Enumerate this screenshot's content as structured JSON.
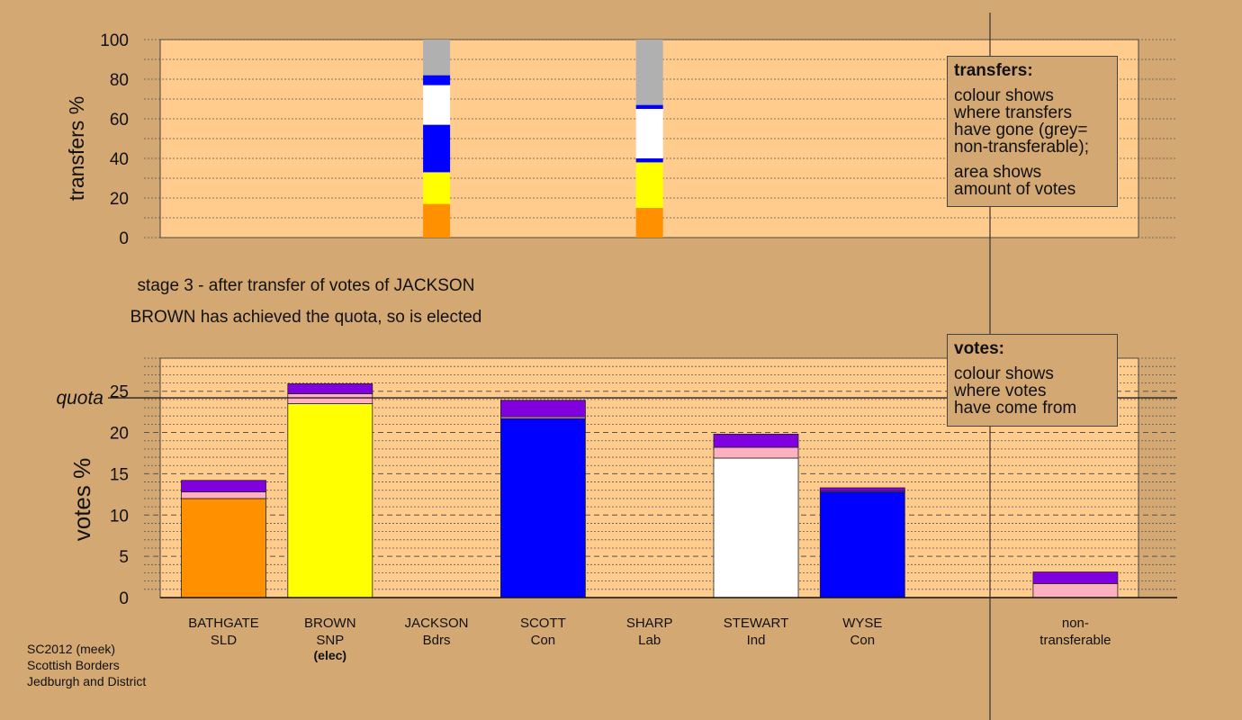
{
  "chart_data": {
    "type": "bar",
    "stage_caption": "stage 3 - after transfer of votes of JACKSON",
    "result_caption": "BROWN has achieved the quota, so is elected",
    "transfers_panel": {
      "ylabel": "transfers %",
      "ylim": [
        0,
        100
      ],
      "yticks": [
        "0",
        "20",
        "40",
        "60",
        "80",
        "100"
      ],
      "bars": [
        {
          "candidate": "JACKSON",
          "segments": [
            {
              "color": "#ff9000",
              "value": 17
            },
            {
              "color": "#ffff00",
              "value": 16
            },
            {
              "color": "#0000ff",
              "value": 24
            },
            {
              "color": "#ffffff",
              "value": 20
            },
            {
              "color": "#0000ff",
              "value": 5
            },
            {
              "color": "#b0b0b0",
              "value": 18
            }
          ]
        },
        {
          "candidate": "SHARP",
          "segments": [
            {
              "color": "#ff9000",
              "value": 15
            },
            {
              "color": "#ffff00",
              "value": 23
            },
            {
              "color": "#0000ff",
              "value": 2
            },
            {
              "color": "#ffffff",
              "value": 25
            },
            {
              "color": "#0000ff",
              "value": 2
            },
            {
              "color": "#b0b0b0",
              "value": 33
            }
          ]
        }
      ]
    },
    "votes_panel": {
      "ylabel": "votes %",
      "ylim": [
        0,
        29
      ],
      "yticks": [
        "0",
        "5",
        "10",
        "15",
        "20",
        "25"
      ],
      "quota": 24.2,
      "quota_label": "quota",
      "bars": [
        {
          "candidate": "BATHGATE",
          "party": "SLD",
          "segments": [
            {
              "color": "#ff9000",
              "value": 12.0
            },
            {
              "color": "#ffb0c0",
              "value": 0.8
            },
            {
              "color": "#8000e0",
              "value": 1.4
            }
          ]
        },
        {
          "candidate": "BROWN",
          "party": "SNP",
          "note": "(elec)",
          "segments": [
            {
              "color": "#ffff00",
              "value": 23.5
            },
            {
              "color": "#ffb0c0",
              "value": 1.2
            },
            {
              "color": "#8000e0",
              "value": 1.2
            }
          ]
        },
        {
          "candidate": "JACKSON",
          "party": "Bdrs",
          "segments": []
        },
        {
          "candidate": "SCOTT",
          "party": "Con",
          "segments": [
            {
              "color": "#0000ff",
              "value": 21.7
            },
            {
              "color": "#ffb0c0",
              "value": 0.2
            },
            {
              "color": "#8000e0",
              "value": 2.0
            }
          ]
        },
        {
          "candidate": "SHARP",
          "party": "Lab",
          "segments": []
        },
        {
          "candidate": "STEWART",
          "party": "Ind",
          "segments": [
            {
              "color": "#ffffff",
              "value": 16.9
            },
            {
              "color": "#ffb0c0",
              "value": 1.3
            },
            {
              "color": "#8000e0",
              "value": 1.6
            }
          ]
        },
        {
          "candidate": "WYSE",
          "party": "Con",
          "segments": [
            {
              "color": "#0000ff",
              "value": 12.8
            },
            {
              "color": "#ffb0c0",
              "value": 0.1
            },
            {
              "color": "#8000e0",
              "value": 0.4
            }
          ]
        },
        {
          "gap": true
        },
        {
          "candidate": "non-",
          "party": "transferable",
          "segments": [
            {
              "color": "#ffb0c0",
              "value": 1.7
            },
            {
              "color": "#8000e0",
              "value": 1.4
            }
          ]
        }
      ]
    },
    "legend_transfers": {
      "title": "transfers:",
      "lines": [
        "colour shows\nwhere transfers\nhave gone (grey=\nnon-transferable);",
        "area shows\namount of votes"
      ]
    },
    "legend_votes": {
      "title": "votes:",
      "lines": [
        "colour shows\nwhere votes\nhave come from"
      ]
    },
    "colors": {
      "background": "#d4a872",
      "plot_area": "#ffcc8e",
      "purple": "#8000e0",
      "pink": "#ffb0c0"
    }
  },
  "footer": {
    "line1": "SC2012 (meek)",
    "line2": "Scottish Borders",
    "line3": "Jedburgh and District"
  }
}
